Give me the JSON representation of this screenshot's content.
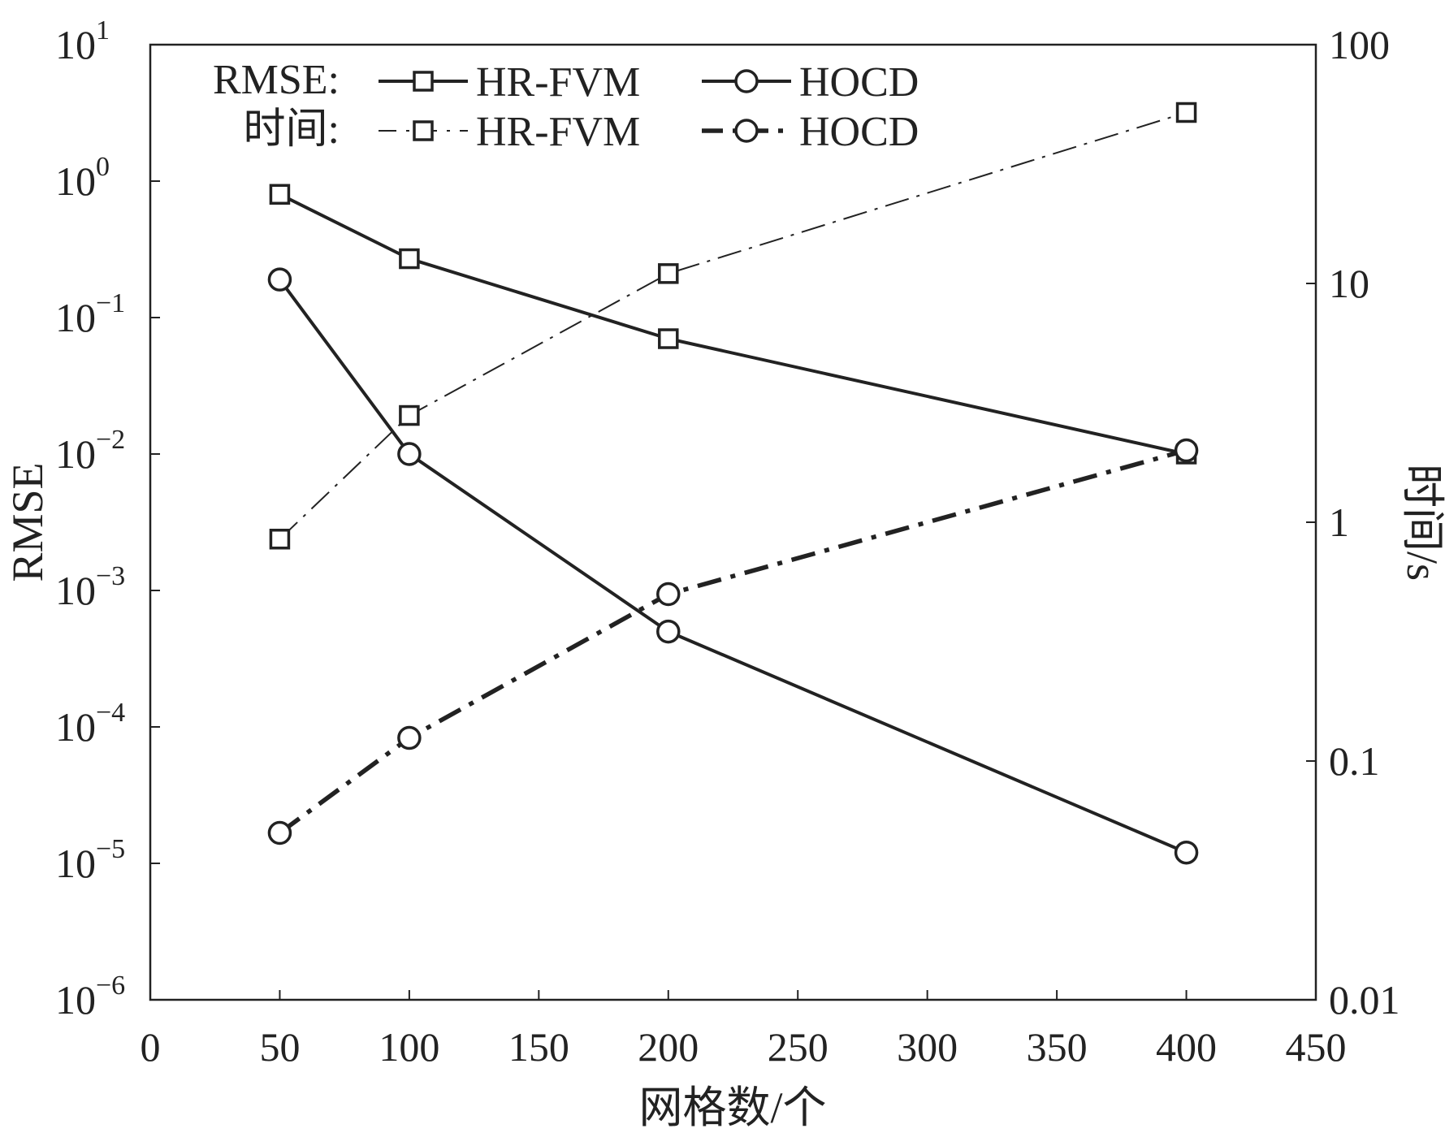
{
  "chart_data": {
    "type": "line",
    "xlabel": "网格数/个",
    "ylabel_left": "RMSE",
    "ylabel_right": "时间/s",
    "xlim": [
      0,
      450
    ],
    "xticks": [
      0,
      50,
      100,
      150,
      200,
      250,
      300,
      350,
      400,
      450
    ],
    "xtick_labels": [
      "0",
      "50",
      "100",
      "150",
      "200",
      "250",
      "300",
      "350",
      "400",
      "450"
    ],
    "ylim_left": [
      1e-06,
      10
    ],
    "yscale_left": "log",
    "yticks_left": [
      {
        "value": 10,
        "base": "10",
        "exp": "1"
      },
      {
        "value": 1,
        "base": "10",
        "exp": "0"
      },
      {
        "value": 0.1,
        "base": "10",
        "exp": "−1"
      },
      {
        "value": 0.01,
        "base": "10",
        "exp": "−2"
      },
      {
        "value": 0.001,
        "base": "10",
        "exp": "−3"
      },
      {
        "value": 0.0001,
        "base": "10",
        "exp": "−4"
      },
      {
        "value": 1e-05,
        "base": "10",
        "exp": "−5"
      },
      {
        "value": 1e-06,
        "base": "10",
        "exp": "−6"
      }
    ],
    "ylim_right": [
      0.01,
      100
    ],
    "yscale_right": "log",
    "yticks_right": [
      {
        "value": 100,
        "label": "100"
      },
      {
        "value": 10,
        "label": "10"
      },
      {
        "value": 1,
        "label": "1"
      },
      {
        "value": 0.1,
        "label": "0.1"
      },
      {
        "value": 0.01,
        "label": "0.01"
      }
    ],
    "grid": false,
    "legend": {
      "position": "top-left",
      "row_labels": [
        "RMSE:",
        "时间:"
      ]
    },
    "series": [
      {
        "name": "HR-FVM",
        "group": "RMSE",
        "axis": "left",
        "marker": "square",
        "line": "solid",
        "x": [
          50,
          100,
          200,
          400
        ],
        "y": [
          0.8,
          0.27,
          0.07,
          0.01
        ]
      },
      {
        "name": "HOCD",
        "group": "RMSE",
        "axis": "left",
        "marker": "circle",
        "line": "solid",
        "x": [
          50,
          100,
          200,
          400
        ],
        "y": [
          0.19,
          0.01,
          0.0005,
          1.2e-05
        ]
      },
      {
        "name": "HR-FVM",
        "group": "时间",
        "axis": "right",
        "marker": "square",
        "line": "dashdot-thin",
        "x": [
          50,
          100,
          200,
          400
        ],
        "y": [
          0.85,
          2.8,
          11,
          52
        ]
      },
      {
        "name": "HOCD",
        "group": "时间",
        "axis": "right",
        "marker": "circle",
        "line": "dashdot-thick",
        "x": [
          50,
          100,
          200,
          400
        ],
        "y": [
          0.05,
          0.125,
          0.5,
          2.0
        ]
      }
    ],
    "colors": {
      "line": "#222222",
      "background": "#ffffff"
    }
  }
}
